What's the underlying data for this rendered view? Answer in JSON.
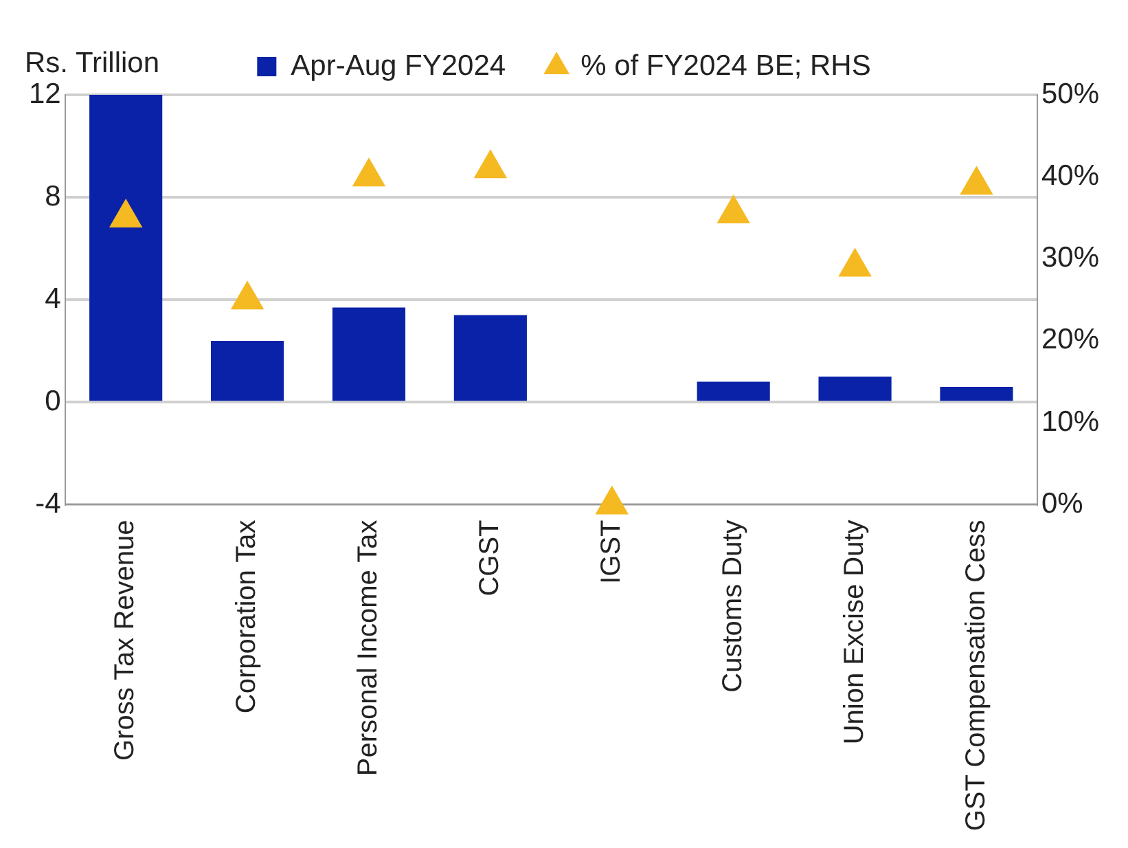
{
  "chart_data": {
    "type": "bar",
    "ylabel": "Rs. Trillion",
    "categories": [
      "Gross Tax Revenue",
      "Corporation Tax",
      "Personal Income Tax",
      "CGST",
      "IGST",
      "Customs Duty",
      "Union Excise Duty",
      "GST Compensation Cess"
    ],
    "series": [
      {
        "name": "Apr-Aug FY2024",
        "color": "#0a22a8",
        "values": [
          12,
          2.4,
          3.7,
          3.4,
          0,
          0.8,
          1.0,
          0.6
        ]
      },
      {
        "name": "% of FY2024 BE; RHS",
        "type": "scatter",
        "axis": "y2",
        "color": "#f5b921",
        "marker": "triangle",
        "values": [
          35,
          25,
          40,
          41,
          0,
          35.5,
          29,
          39
        ]
      }
    ],
    "ylim": [
      -4,
      12
    ],
    "yticks": [
      -4,
      0,
      4,
      8,
      12
    ],
    "y2lim": [
      0,
      50
    ],
    "y2ticks": [
      {
        "value": 0,
        "label": "0%"
      },
      {
        "value": 10,
        "label": "10%"
      },
      {
        "value": 20,
        "label": "20%"
      },
      {
        "value": 30,
        "label": "30%"
      },
      {
        "value": 40,
        "label": "40%"
      },
      {
        "value": 50,
        "label": "50%"
      }
    ],
    "grid": "y",
    "legend": "top"
  }
}
